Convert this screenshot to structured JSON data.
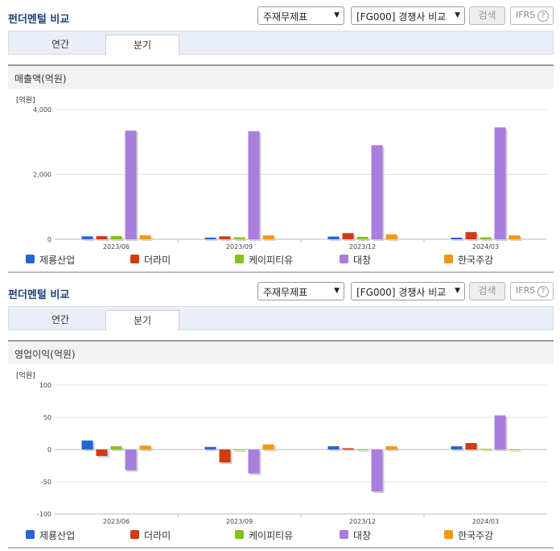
{
  "panels": [
    {
      "title": "펀더멘털 비교",
      "select_statement": "주재무제표",
      "select_compare": "[FG000] 경쟁사 비교",
      "search_label": "검색",
      "ifrs_label": "IFRS",
      "help_symbol": "?",
      "tabs": [
        "연간",
        "분기"
      ],
      "active_tab": "분기",
      "section_title": "매출액(억원)",
      "unit_label": "[억원]"
    },
    {
      "title": "펀더멘털 비교",
      "select_statement": "주재무제표",
      "select_compare": "[FG000] 경쟁사 비교",
      "search_label": "검색",
      "ifrs_label": "IFRS",
      "help_symbol": "?",
      "tabs": [
        "연간",
        "분기"
      ],
      "active_tab": "분기",
      "section_title": "영업이익(억원)",
      "unit_label": "[억원]"
    }
  ],
  "colors": {
    "제룡산업": "#2565d8",
    "더라미": "#d23a12",
    "케이피티유": "#86c21d",
    "대창": "#a97ddd",
    "한국주강": "#f2980e"
  },
  "chart_data": [
    {
      "type": "bar",
      "title": "매출액(억원)",
      "ylabel": "[억원]",
      "categories": [
        "2023/06",
        "2023/09",
        "2023/12",
        "2024/03"
      ],
      "yticks": [
        "4,000",
        "2,000",
        "0"
      ],
      "ylim": [
        0,
        4000
      ],
      "legend_position": "bottom",
      "series": [
        {
          "name": "제룡산업",
          "values": [
            90,
            50,
            85,
            50
          ]
        },
        {
          "name": "더라미",
          "values": [
            95,
            90,
            190,
            220
          ]
        },
        {
          "name": "케이피티유",
          "values": [
            100,
            60,
            75,
            60
          ]
        },
        {
          "name": "대창",
          "values": [
            3350,
            3330,
            2900,
            3450
          ]
        },
        {
          "name": "한국주강",
          "values": [
            120,
            120,
            150,
            120
          ]
        }
      ]
    },
    {
      "type": "bar",
      "title": "영업이익(억원)",
      "ylabel": "[억원]",
      "categories": [
        "2023/06",
        "2023/09",
        "2023/12",
        "2024/03"
      ],
      "yticks": [
        "100",
        "50",
        "0",
        "-50",
        "-100"
      ],
      "ylim": [
        -100,
        100
      ],
      "legend_position": "bottom",
      "series": [
        {
          "name": "제룡산업",
          "values": [
            14,
            4,
            5,
            5
          ]
        },
        {
          "name": "더라미",
          "values": [
            -10,
            -20,
            2,
            10
          ]
        },
        {
          "name": "케이피티유",
          "values": [
            5,
            0,
            0,
            1
          ]
        },
        {
          "name": "대창",
          "values": [
            -32,
            -37,
            -65,
            53
          ]
        },
        {
          "name": "한국주강",
          "values": [
            6,
            8,
            5,
            0
          ]
        }
      ]
    }
  ]
}
